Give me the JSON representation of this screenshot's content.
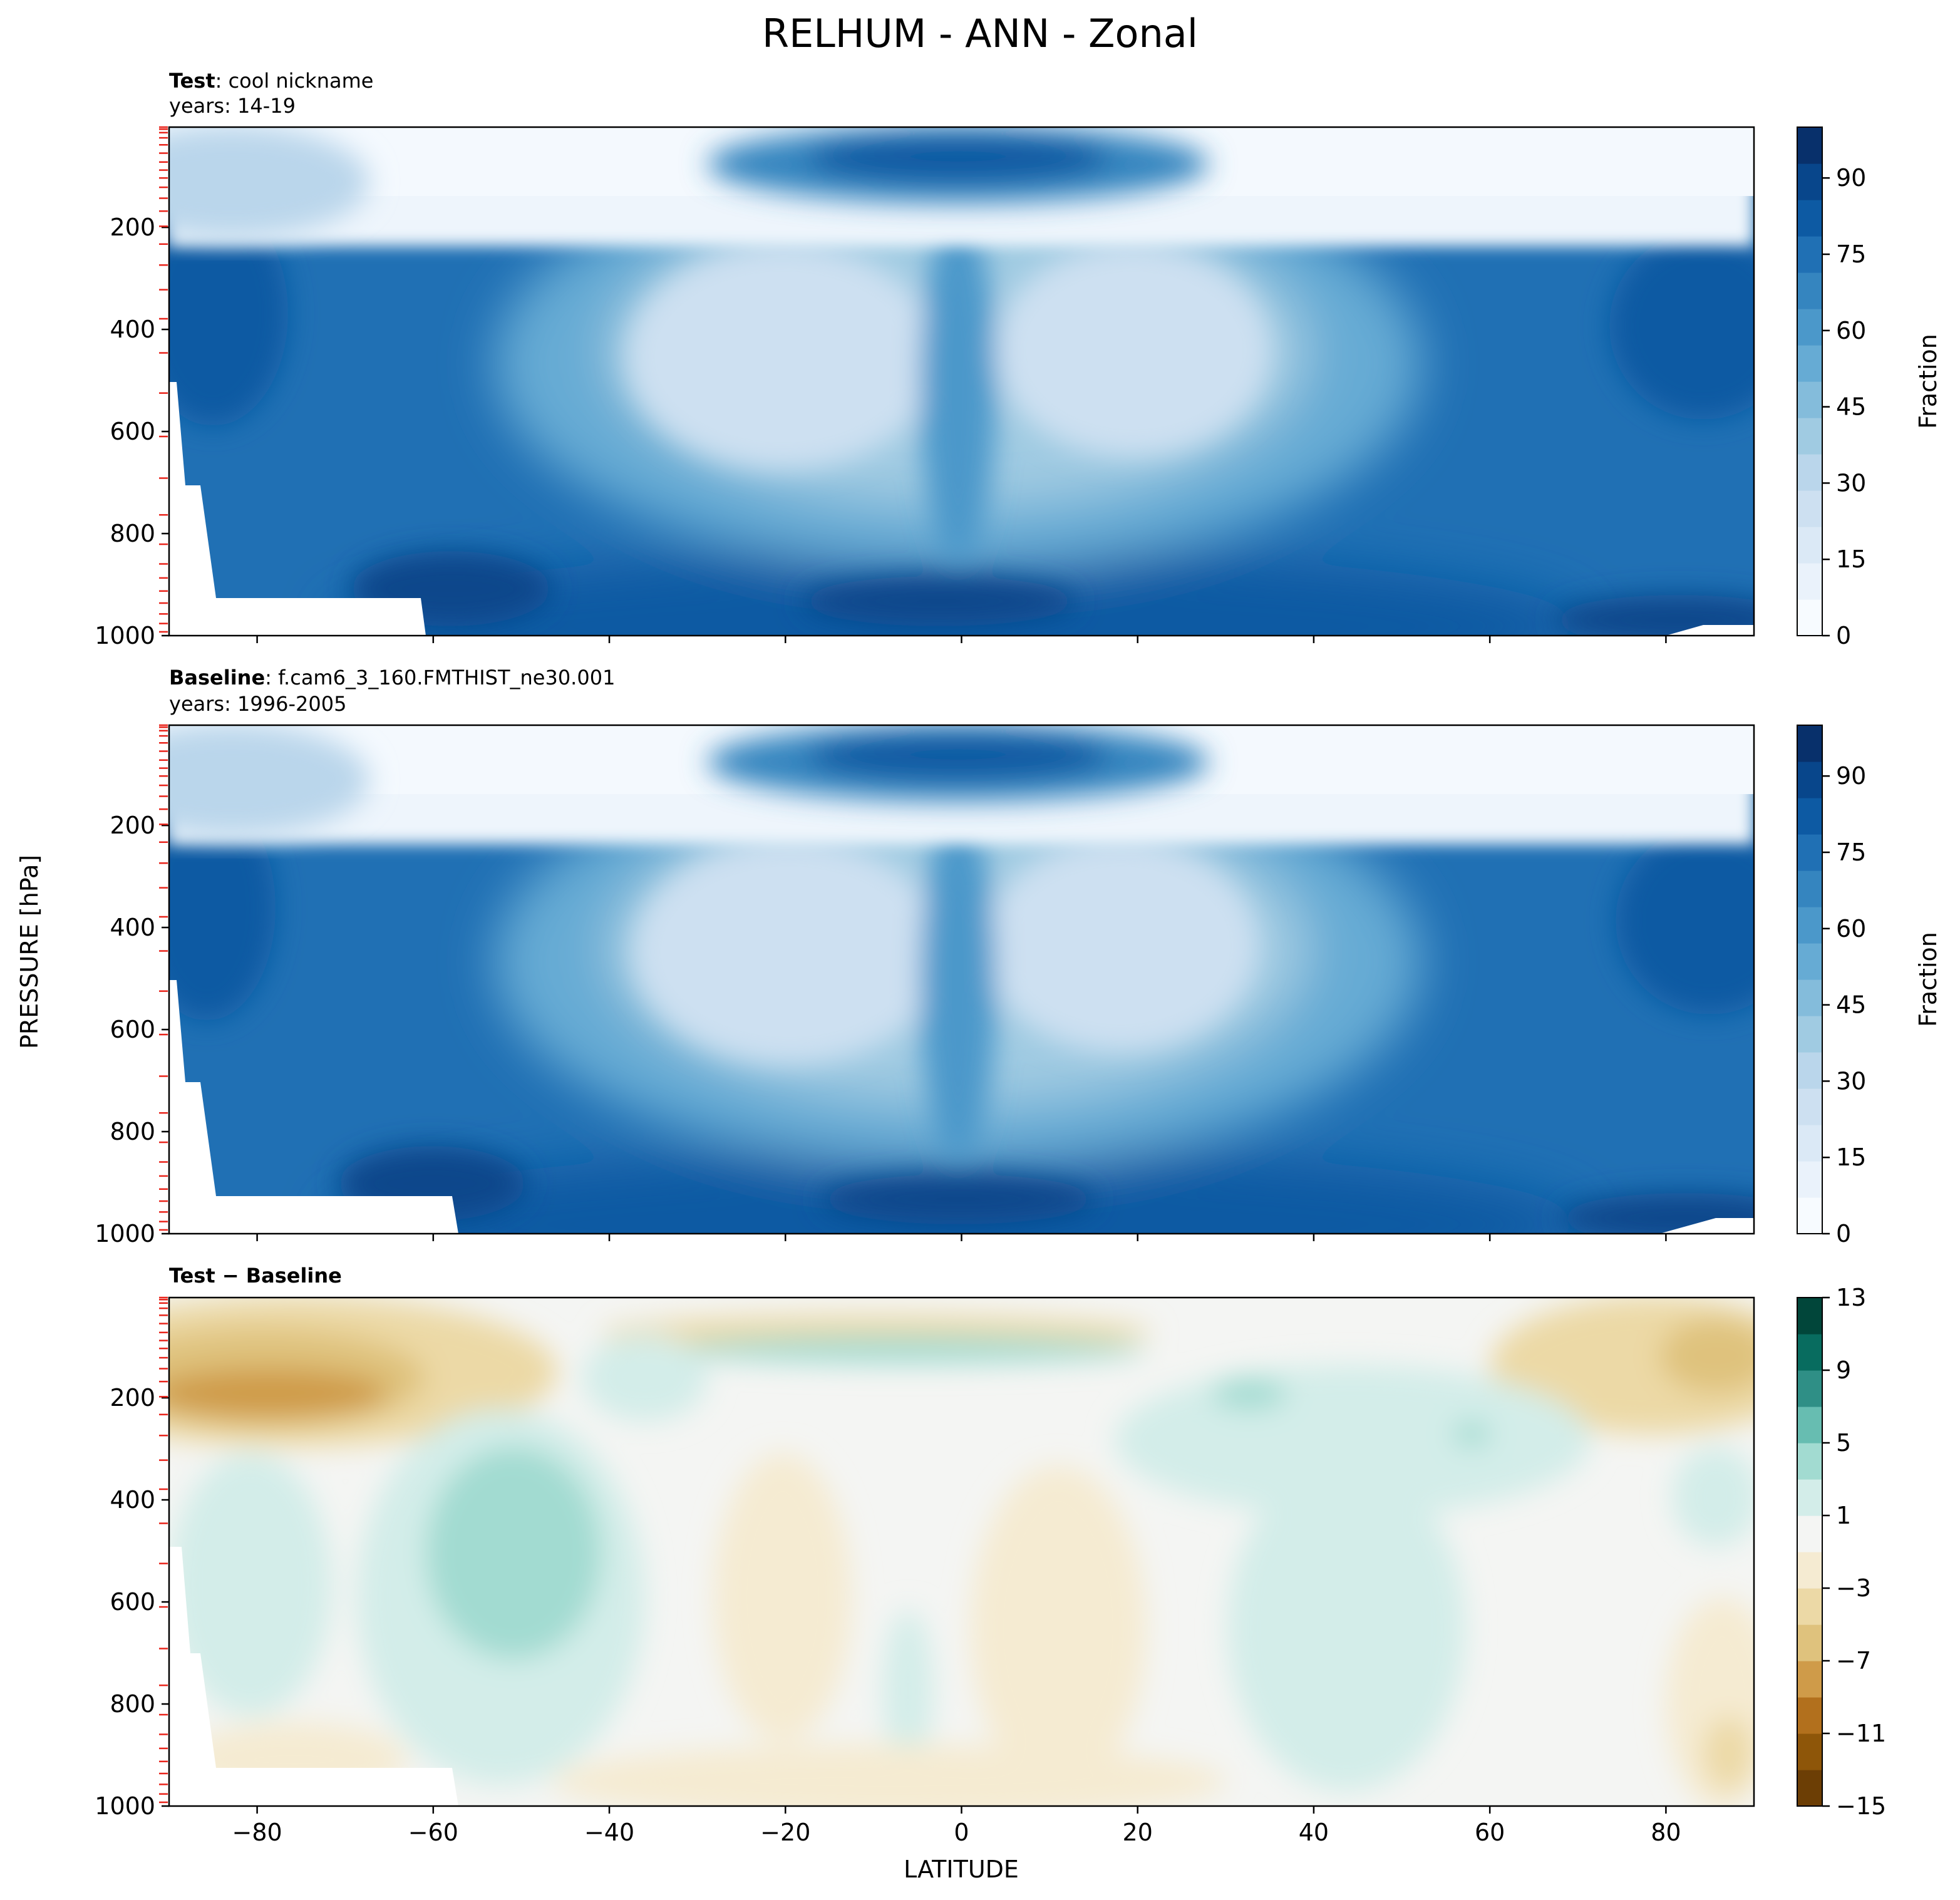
{
  "figure": {
    "title": "RELHUM - ANN - Zonal",
    "ylabel": "PRESSURE [hPa]",
    "xlabel": "LATITUDE"
  },
  "colors": {
    "blues": [
      "#f7fbff",
      "#eaf2fb",
      "#dbe9f6",
      "#cde0f1",
      "#bad6eb",
      "#a0cbe2",
      "#84bcdb",
      "#66abd4",
      "#4b98ca",
      "#3585bf",
      "#2070b4",
      "#0d5aa3",
      "#08468b",
      "#08306b"
    ],
    "brbg_neg": [
      "#6c3e05",
      "#8e5609",
      "#b2701d",
      "#cf9b49",
      "#dfc27d",
      "#ecd9a6",
      "#f5ebd2"
    ],
    "brbg_pos": [
      "#d3ede9",
      "#a2dbd1",
      "#67bdb1",
      "#2f8f86",
      "#086c5f",
      "#01463a"
    ],
    "neutral": "#f4f5f3"
  },
  "chart_data": [
    {
      "type": "heatmap",
      "title_bold": "Test",
      "title_rest": ": cool nickname",
      "years": "years: 14-19",
      "xlim": [
        -90,
        90
      ],
      "ylim": [
        1000,
        3.6
      ],
      "yticks": [
        "200",
        "400",
        "600",
        "800",
        "1000"
      ],
      "xticks": [
        -80,
        -60,
        -40,
        -20,
        0,
        20,
        40,
        60,
        80
      ],
      "colorbar": {
        "label": "Fraction",
        "range": [
          0,
          100
        ],
        "ticks": [
          "0",
          "15",
          "30",
          "45",
          "60",
          "75",
          "90"
        ]
      },
      "approx_fields": {
        "lower_troposphere": 75,
        "upper_troposphere": 5,
        "tropical_tropopause_max": 85,
        "subtropical_minimum": 25,
        "boundary_layer_max": 95
      }
    },
    {
      "type": "heatmap",
      "title_bold": "Baseline",
      "title_rest": ": f.cam6_3_160.FMTHIST_ne30.001",
      "years": "years: 1996-2005",
      "xlim": [
        -90,
        90
      ],
      "ylim": [
        1000,
        3.6
      ],
      "yticks": [
        "200",
        "400",
        "600",
        "800",
        "1000"
      ],
      "xticks": [
        -80,
        -60,
        -40,
        -20,
        0,
        20,
        40,
        60,
        80
      ],
      "colorbar": {
        "label": "Fraction",
        "range": [
          0,
          100
        ],
        "ticks": [
          "0",
          "15",
          "30",
          "45",
          "60",
          "75",
          "90"
        ]
      },
      "approx_fields": {
        "lower_troposphere": 75,
        "upper_troposphere": 5,
        "tropical_tropopause_max": 82,
        "subtropical_minimum": 25,
        "boundary_layer_max": 95
      }
    },
    {
      "type": "heatmap",
      "title_bold": "Test − Baseline",
      "xlim": [
        -90,
        90
      ],
      "ylim": [
        1000,
        3.6
      ],
      "yticks": [
        "200",
        "400",
        "600",
        "800",
        "1000"
      ],
      "xticks": [
        "−80",
        "−60",
        "−40",
        "−20",
        "0",
        "20",
        "40",
        "60",
        "80"
      ],
      "colorbar": {
        "label": "",
        "range": [
          -15,
          13
        ],
        "ticks": [
          "−15",
          "−11",
          "−7",
          "−3",
          "1",
          "5",
          "9",
          "13"
        ]
      },
      "approx_fields": {
        "sh_upper_dry": -9,
        "nh_upper_dry": -5,
        "tropopause_moist": 4,
        "sh_midlat_moist": 5
      }
    }
  ]
}
